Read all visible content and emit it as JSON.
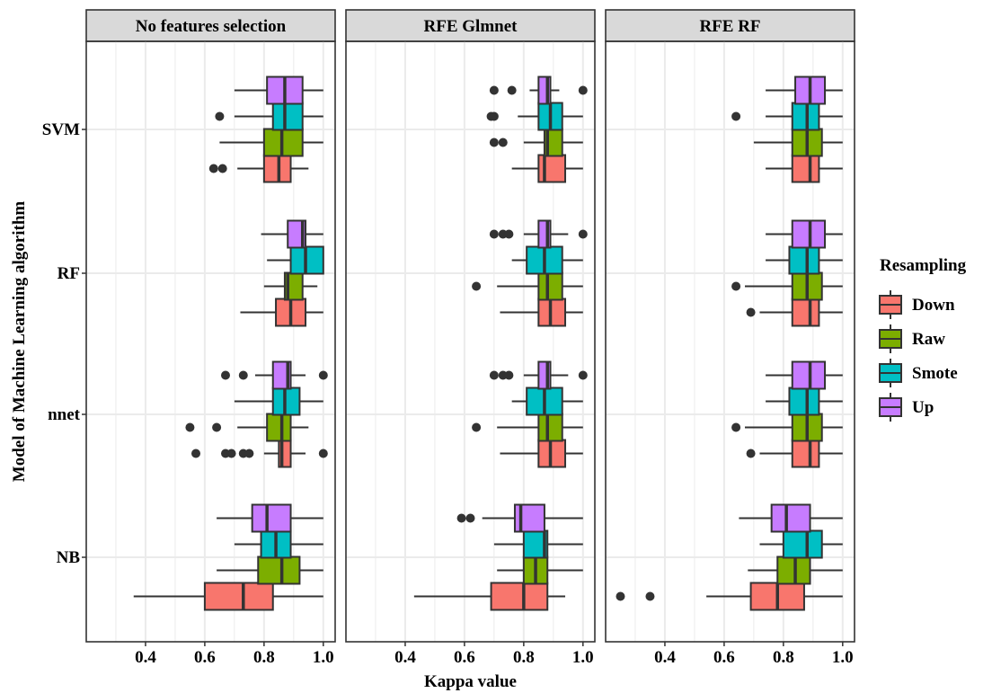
{
  "chart_data": {
    "type": "boxplot",
    "orientation": "horizontal",
    "x_label": "Kappa value",
    "y_label": "Model of Machine Learning algorithm",
    "x_ticks": [
      0.4,
      0.6,
      0.8,
      1.0
    ],
    "x_tick_labels": [
      "0.4",
      "0.6",
      "0.8",
      "1.0"
    ],
    "xlim": [
      0.2,
      1.04
    ],
    "grid": true,
    "legend": {
      "title": "Resampling",
      "position": "right",
      "entries": [
        {
          "name": "Down",
          "color": "#F8766D"
        },
        {
          "name": "Raw",
          "color": "#7CAE00"
        },
        {
          "name": "Smote",
          "color": "#00BFC4"
        },
        {
          "name": "Up",
          "color": "#C77CFF"
        }
      ]
    },
    "categories": [
      "NB",
      "nnet",
      "RF",
      "SVM"
    ],
    "series_order": [
      "Down",
      "Raw",
      "Smote",
      "Up"
    ],
    "panels": [
      {
        "title": "No features selection",
        "boxes": {
          "SVM": {
            "Down": {
              "wmin": 0.71,
              "q1": 0.8,
              "med": 0.85,
              "q3": 0.89,
              "wmax": 0.95,
              "outliers": [
                0.63,
                0.66
              ]
            },
            "Raw": {
              "wmin": 0.65,
              "q1": 0.8,
              "med": 0.86,
              "q3": 0.93,
              "wmax": 1.0,
              "outliers": []
            },
            "Smote": {
              "wmin": 0.7,
              "q1": 0.83,
              "med": 0.87,
              "q3": 0.93,
              "wmax": 1.0,
              "outliers": [
                0.65
              ]
            },
            "Up": {
              "wmin": 0.7,
              "q1": 0.81,
              "med": 0.87,
              "q3": 0.93,
              "wmax": 1.0,
              "outliers": []
            }
          },
          "RF": {
            "Down": {
              "wmin": 0.72,
              "q1": 0.84,
              "med": 0.89,
              "q3": 0.94,
              "wmax": 1.0,
              "outliers": []
            },
            "Raw": {
              "wmin": 0.8,
              "q1": 0.87,
              "med": 0.88,
              "q3": 0.93,
              "wmax": 0.98,
              "outliers": []
            },
            "Smote": {
              "wmin": 0.81,
              "q1": 0.89,
              "med": 0.94,
              "q3": 1.0,
              "wmax": 1.0,
              "outliers": []
            },
            "Up": {
              "wmin": 0.79,
              "q1": 0.88,
              "med": 0.93,
              "q3": 0.94,
              "wmax": 1.0,
              "outliers": []
            }
          },
          "nnet": {
            "Down": {
              "wmin": 0.8,
              "q1": 0.85,
              "med": 0.86,
              "q3": 0.89,
              "wmax": 0.94,
              "outliers": [
                0.57,
                0.67,
                0.69,
                0.73,
                0.75,
                1.0
              ]
            },
            "Raw": {
              "wmin": 0.71,
              "q1": 0.81,
              "med": 0.86,
              "q3": 0.89,
              "wmax": 0.95,
              "outliers": [
                0.55,
                0.64
              ]
            },
            "Smote": {
              "wmin": 0.7,
              "q1": 0.83,
              "med": 0.87,
              "q3": 0.92,
              "wmax": 1.0,
              "outliers": []
            },
            "Up": {
              "wmin": 0.77,
              "q1": 0.83,
              "med": 0.88,
              "q3": 0.89,
              "wmax": 0.94,
              "outliers": [
                0.67,
                0.73,
                1.0
              ]
            }
          },
          "NB": {
            "Down": {
              "wmin": 0.36,
              "q1": 0.6,
              "med": 0.73,
              "q3": 0.83,
              "wmax": 1.0,
              "outliers": []
            },
            "Raw": {
              "wmin": 0.64,
              "q1": 0.78,
              "med": 0.86,
              "q3": 0.92,
              "wmax": 1.0,
              "outliers": []
            },
            "Smote": {
              "wmin": 0.7,
              "q1": 0.79,
              "med": 0.84,
              "q3": 0.89,
              "wmax": 1.0,
              "outliers": []
            },
            "Up": {
              "wmin": 0.64,
              "q1": 0.76,
              "med": 0.81,
              "q3": 0.89,
              "wmax": 1.0,
              "outliers": []
            }
          }
        }
      },
      {
        "title": "RFE Glmnet",
        "boxes": {
          "SVM": {
            "Down": {
              "wmin": 0.76,
              "q1": 0.85,
              "med": 0.87,
              "q3": 0.94,
              "wmax": 1.0,
              "outliers": []
            },
            "Raw": {
              "wmin": 0.8,
              "q1": 0.87,
              "med": 0.88,
              "q3": 0.93,
              "wmax": 1.0,
              "outliers": [
                0.7,
                0.73
              ]
            },
            "Smote": {
              "wmin": 0.78,
              "q1": 0.85,
              "med": 0.89,
              "q3": 0.93,
              "wmax": 1.0,
              "outliers": [
                0.69,
                0.7
              ]
            },
            "Up": {
              "wmin": 0.82,
              "q1": 0.85,
              "med": 0.88,
              "q3": 0.89,
              "wmax": 0.92,
              "outliers": [
                0.7,
                0.76,
                1.0
              ]
            }
          },
          "RF": {
            "Down": {
              "wmin": 0.72,
              "q1": 0.85,
              "med": 0.89,
              "q3": 0.94,
              "wmax": 1.0,
              "outliers": []
            },
            "Raw": {
              "wmin": 0.71,
              "q1": 0.85,
              "med": 0.88,
              "q3": 0.93,
              "wmax": 1.0,
              "outliers": [
                0.64
              ]
            },
            "Smote": {
              "wmin": 0.76,
              "q1": 0.81,
              "med": 0.87,
              "q3": 0.93,
              "wmax": 1.0,
              "outliers": []
            },
            "Up": {
              "wmin": 0.8,
              "q1": 0.85,
              "med": 0.88,
              "q3": 0.89,
              "wmax": 0.95,
              "outliers": [
                0.7,
                0.73,
                0.75,
                1.0
              ]
            }
          },
          "nnet": {
            "Down": {
              "wmin": 0.72,
              "q1": 0.85,
              "med": 0.89,
              "q3": 0.94,
              "wmax": 1.0,
              "outliers": []
            },
            "Raw": {
              "wmin": 0.71,
              "q1": 0.85,
              "med": 0.88,
              "q3": 0.93,
              "wmax": 1.0,
              "outliers": [
                0.64
              ]
            },
            "Smote": {
              "wmin": 0.76,
              "q1": 0.81,
              "med": 0.87,
              "q3": 0.93,
              "wmax": 1.0,
              "outliers": []
            },
            "Up": {
              "wmin": 0.8,
              "q1": 0.85,
              "med": 0.88,
              "q3": 0.89,
              "wmax": 0.95,
              "outliers": [
                0.7,
                0.73,
                0.75,
                1.0
              ]
            }
          },
          "NB": {
            "Down": {
              "wmin": 0.43,
              "q1": 0.69,
              "med": 0.8,
              "q3": 0.88,
              "wmax": 0.94,
              "outliers": []
            },
            "Raw": {
              "wmin": 0.71,
              "q1": 0.8,
              "med": 0.84,
              "q3": 0.88,
              "wmax": 1.0,
              "outliers": []
            },
            "Smote": {
              "wmin": 0.7,
              "q1": 0.8,
              "med": 0.87,
              "q3": 0.88,
              "wmax": 1.0,
              "outliers": []
            },
            "Up": {
              "wmin": 0.66,
              "q1": 0.77,
              "med": 0.79,
              "q3": 0.87,
              "wmax": 1.0,
              "outliers": [
                0.59,
                0.62
              ]
            }
          }
        }
      },
      {
        "title": "RFE RF",
        "boxes": {
          "SVM": {
            "Down": {
              "wmin": 0.74,
              "q1": 0.83,
              "med": 0.89,
              "q3": 0.92,
              "wmax": 1.0,
              "outliers": []
            },
            "Raw": {
              "wmin": 0.7,
              "q1": 0.83,
              "med": 0.88,
              "q3": 0.93,
              "wmax": 1.0,
              "outliers": []
            },
            "Smote": {
              "wmin": 0.74,
              "q1": 0.83,
              "med": 0.88,
              "q3": 0.92,
              "wmax": 1.0,
              "outliers": [
                0.64
              ]
            },
            "Up": {
              "wmin": 0.74,
              "q1": 0.84,
              "med": 0.89,
              "q3": 0.94,
              "wmax": 1.0,
              "outliers": []
            }
          },
          "RF": {
            "Down": {
              "wmin": 0.72,
              "q1": 0.83,
              "med": 0.89,
              "q3": 0.92,
              "wmax": 1.0,
              "outliers": [
                0.69
              ]
            },
            "Raw": {
              "wmin": 0.67,
              "q1": 0.83,
              "med": 0.88,
              "q3": 0.93,
              "wmax": 1.0,
              "outliers": [
                0.64
              ]
            },
            "Smote": {
              "wmin": 0.74,
              "q1": 0.82,
              "med": 0.88,
              "q3": 0.92,
              "wmax": 1.0,
              "outliers": []
            },
            "Up": {
              "wmin": 0.74,
              "q1": 0.83,
              "med": 0.89,
              "q3": 0.94,
              "wmax": 1.0,
              "outliers": []
            }
          },
          "nnet": {
            "Down": {
              "wmin": 0.72,
              "q1": 0.83,
              "med": 0.89,
              "q3": 0.92,
              "wmax": 1.0,
              "outliers": [
                0.69
              ]
            },
            "Raw": {
              "wmin": 0.67,
              "q1": 0.83,
              "med": 0.88,
              "q3": 0.93,
              "wmax": 1.0,
              "outliers": [
                0.64
              ]
            },
            "Smote": {
              "wmin": 0.74,
              "q1": 0.82,
              "med": 0.88,
              "q3": 0.92,
              "wmax": 1.0,
              "outliers": []
            },
            "Up": {
              "wmin": 0.74,
              "q1": 0.83,
              "med": 0.89,
              "q3": 0.94,
              "wmax": 1.0,
              "outliers": []
            }
          },
          "NB": {
            "Down": {
              "wmin": 0.54,
              "q1": 0.69,
              "med": 0.78,
              "q3": 0.87,
              "wmax": 1.0,
              "outliers": [
                0.25,
                0.35
              ]
            },
            "Raw": {
              "wmin": 0.68,
              "q1": 0.78,
              "med": 0.84,
              "q3": 0.89,
              "wmax": 1.0,
              "outliers": []
            },
            "Smote": {
              "wmin": 0.72,
              "q1": 0.8,
              "med": 0.88,
              "q3": 0.93,
              "wmax": 1.0,
              "outliers": []
            },
            "Up": {
              "wmin": 0.65,
              "q1": 0.76,
              "med": 0.81,
              "q3": 0.89,
              "wmax": 1.0,
              "outliers": []
            }
          }
        }
      }
    ]
  }
}
